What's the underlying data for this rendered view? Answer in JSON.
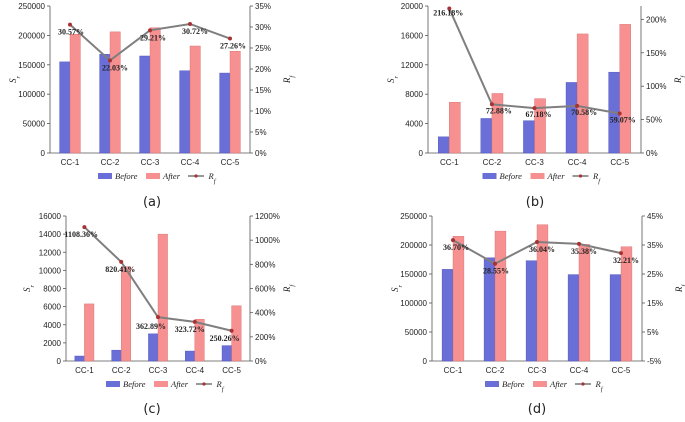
{
  "colors": {
    "before": "#6a6fd8",
    "after": "#f79191",
    "rf": "#7f7f7f",
    "rf_marker": "#a83232"
  },
  "legend": {
    "before": "Before",
    "after": "After",
    "rf": "R_f"
  },
  "chart_data": [
    {
      "panel": "(a)",
      "type": "bar+line",
      "categories": [
        "CC-1",
        "CC-2",
        "CC-3",
        "CC-4",
        "CC-5"
      ],
      "ylabel": "S_r",
      "y2label": "R_f",
      "ylim": [
        0,
        250000
      ],
      "yticks": [
        0,
        50000,
        100000,
        150000,
        200000,
        250000
      ],
      "y2lim": [
        0,
        35
      ],
      "y2ticks": [
        0,
        5,
        10,
        15,
        20,
        25,
        30,
        35
      ],
      "series": [
        {
          "name": "Before",
          "values": [
            155000,
            168000,
            165000,
            140000,
            136000
          ]
        },
        {
          "name": "After",
          "values": [
            202000,
            206000,
            213000,
            182000,
            173000
          ]
        },
        {
          "name": "R_f",
          "axis": "right",
          "values": [
            30.57,
            22.03,
            29.21,
            30.72,
            27.26
          ],
          "labels": [
            "30.57%",
            "22.03%",
            "29.21%",
            "30.72%",
            "27.26%"
          ]
        }
      ]
    },
    {
      "panel": "(b)",
      "type": "bar+line",
      "categories": [
        "CC-1",
        "CC-2",
        "CC-3",
        "CC-4",
        "CC-5"
      ],
      "ylabel": "S_r",
      "y2label": "R_f",
      "ylim": [
        0,
        20000
      ],
      "yticks": [
        0,
        4000,
        8000,
        12000,
        16000,
        20000
      ],
      "y2lim": [
        0,
        220
      ],
      "y2ticks": [
        0,
        50,
        100,
        150,
        200
      ],
      "series": [
        {
          "name": "Before",
          "values": [
            2200,
            4700,
            4400,
            9600,
            11000
          ]
        },
        {
          "name": "After",
          "values": [
            6900,
            8100,
            7400,
            16200,
            17500
          ]
        },
        {
          "name": "R_f",
          "axis": "right",
          "values": [
            216.18,
            72.88,
            67.18,
            70.58,
            59.07
          ],
          "labels": [
            "216.18%",
            "72.88%",
            "67.18%",
            "70.58%",
            "59.07%"
          ]
        }
      ]
    },
    {
      "panel": "(c)",
      "type": "bar+line",
      "categories": [
        "CC-1",
        "CC-2",
        "CC-3",
        "CC-4",
        "CC-5"
      ],
      "ylabel": "S_r",
      "y2label": "R_f",
      "ylim": [
        0,
        16000
      ],
      "yticks": [
        0,
        2000,
        4000,
        6000,
        8000,
        10000,
        12000,
        14000,
        16000
      ],
      "y2lim": [
        0,
        1200
      ],
      "y2ticks": [
        0,
        200,
        400,
        600,
        800,
        1000,
        1200
      ],
      "series": [
        {
          "name": "Before",
          "values": [
            550,
            1200,
            3000,
            1100,
            1700
          ]
        },
        {
          "name": "After",
          "values": [
            6300,
            10400,
            14000,
            4600,
            6100
          ]
        },
        {
          "name": "R_f",
          "axis": "right",
          "values": [
            1108.36,
            820.41,
            362.89,
            323.72,
            250.26
          ],
          "labels": [
            "1108.36%",
            "820.41%",
            "362.89%",
            "323.72%",
            "250.26%"
          ]
        }
      ]
    },
    {
      "panel": "(d)",
      "type": "bar+line",
      "categories": [
        "CC-1",
        "CC-2",
        "CC-3",
        "CC-4",
        "CC-5"
      ],
      "ylabel": "S_r",
      "y2label": "R_f",
      "ylim": [
        0,
        250000
      ],
      "yticks": [
        0,
        50000,
        100000,
        150000,
        200000,
        250000
      ],
      "y2lim": [
        -5,
        45
      ],
      "y2ticks": [
        -5,
        5,
        15,
        25,
        35,
        45
      ],
      "series": [
        {
          "name": "Before",
          "values": [
            158000,
            178000,
            173000,
            149000,
            149000
          ]
        },
        {
          "name": "After",
          "values": [
            215000,
            224000,
            235000,
            201000,
            197000
          ]
        },
        {
          "name": "R_f",
          "axis": "right",
          "values": [
            36.7,
            28.55,
            36.04,
            35.38,
            32.21
          ],
          "labels": [
            "36.70%",
            "28.55%",
            "36.04%",
            "35.38%",
            "32.21%"
          ]
        }
      ]
    }
  ]
}
